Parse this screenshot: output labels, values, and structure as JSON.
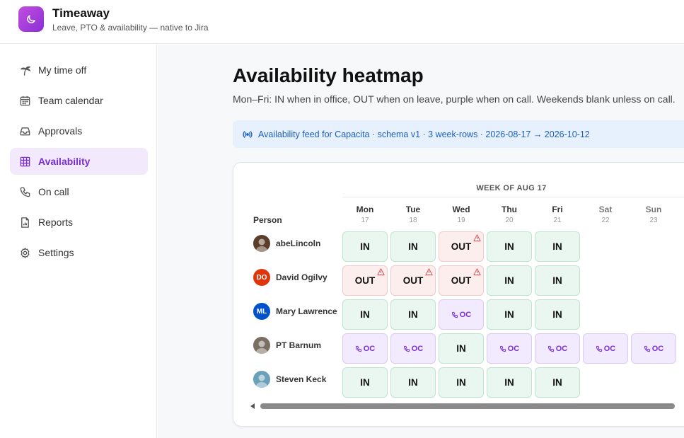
{
  "app": {
    "name": "Timeaway",
    "subtitle": "Leave, PTO & availability — native to Jira",
    "accent": "#8b2fd6"
  },
  "sidebar": {
    "items": [
      {
        "label": "My time off",
        "icon": "palm-tree-icon"
      },
      {
        "label": "Team calendar",
        "icon": "calendar-icon"
      },
      {
        "label": "Approvals",
        "icon": "inbox-icon"
      },
      {
        "label": "Availability",
        "icon": "grid-icon",
        "active": true
      },
      {
        "label": "On call",
        "icon": "phone-icon"
      },
      {
        "label": "Reports",
        "icon": "report-icon"
      },
      {
        "label": "Settings",
        "icon": "gear-icon"
      }
    ]
  },
  "main": {
    "title": "Availability heatmap",
    "description": "Mon–Fri: IN when in office, OUT when on leave, purple when on call. Weekends blank unless on call.",
    "feed": "Availability feed for Capacita · schema v1 · 3 week-rows · 2026-08-17 → 2026-10-12"
  },
  "heatmap": {
    "week_label": "WEEK OF AUG 17",
    "person_header": "Person",
    "days": [
      {
        "name": "Mon",
        "num": "17"
      },
      {
        "name": "Tue",
        "num": "18"
      },
      {
        "name": "Wed",
        "num": "19"
      },
      {
        "name": "Thu",
        "num": "20"
      },
      {
        "name": "Fri",
        "num": "21"
      },
      {
        "name": "Sat",
        "num": "22"
      },
      {
        "name": "Sun",
        "num": "23"
      }
    ],
    "oc_label": "OC",
    "in_label": "IN",
    "out_label": "OUT",
    "people": [
      {
        "name": "abeLincoln",
        "avatar": "photo",
        "avatar_color": "#5a3e2b",
        "cells": [
          "IN",
          "IN",
          "OUT!",
          "IN",
          "IN",
          "",
          ""
        ]
      },
      {
        "name": "David Ogilvy",
        "avatar": "DO",
        "avatar_color": "#de350b",
        "cells": [
          "OUT!",
          "OUT!",
          "OUT!",
          "IN",
          "IN",
          "",
          ""
        ]
      },
      {
        "name": "Mary Lawrence",
        "avatar": "ML",
        "avatar_color": "#0052cc",
        "cells": [
          "IN",
          "IN",
          "OC",
          "IN",
          "IN",
          "",
          ""
        ]
      },
      {
        "name": "PT Barnum",
        "avatar": "photo",
        "avatar_color": "#7a6e62",
        "cells": [
          "OC",
          "OC",
          "IN",
          "OC",
          "OC",
          "OC",
          "OC"
        ]
      },
      {
        "name": "Steven Keck",
        "avatar": "photo",
        "avatar_color": "#6aa0b8",
        "cells": [
          "IN",
          "IN",
          "IN",
          "IN",
          "IN",
          "",
          ""
        ]
      }
    ]
  }
}
